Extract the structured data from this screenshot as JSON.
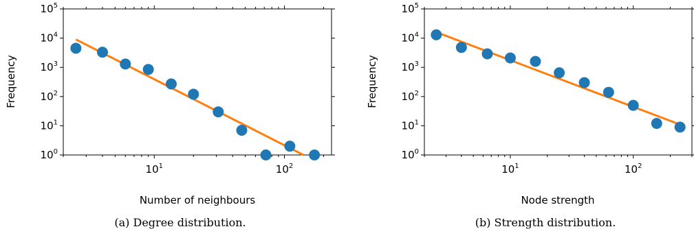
{
  "chart_data": [
    {
      "type": "scatter",
      "xscale": "log",
      "yscale": "log",
      "xlim": [
        2.0,
        230
      ],
      "ylim": [
        1,
        100000
      ],
      "xticks": [
        {
          "value": 10,
          "base": "10",
          "exp": "1"
        },
        {
          "value": 100,
          "base": "10",
          "exp": "2"
        }
      ],
      "yticks": [
        {
          "value": 1,
          "base": "10",
          "exp": "0"
        },
        {
          "value": 10,
          "base": "10",
          "exp": "1"
        },
        {
          "value": 100,
          "base": "10",
          "exp": "2"
        },
        {
          "value": 1000,
          "base": "10",
          "exp": "3"
        },
        {
          "value": 10000,
          "base": "10",
          "exp": "4"
        },
        {
          "value": 100000,
          "base": "10",
          "exp": "5"
        }
      ],
      "xlabel": "Number of neighbours",
      "ylabel": "Frequency",
      "caption": "(a) Degree distribution.",
      "points": [
        {
          "x": 2.5,
          "y": 4500
        },
        {
          "x": 4,
          "y": 3300
        },
        {
          "x": 6,
          "y": 1300
        },
        {
          "x": 9,
          "y": 850
        },
        {
          "x": 13.5,
          "y": 270
        },
        {
          "x": 20,
          "y": 120
        },
        {
          "x": 31,
          "y": 30
        },
        {
          "x": 47,
          "y": 7
        },
        {
          "x": 72,
          "y": 1
        },
        {
          "x": 110,
          "y": 2
        },
        {
          "x": 170,
          "y": 1
        }
      ],
      "fit": [
        {
          "x": 2.5,
          "y": 9000
        },
        {
          "x": 140,
          "y": 1
        }
      ],
      "colors": {
        "points": "#1f77b4",
        "fit": "#ff7f0e"
      }
    },
    {
      "type": "scatter",
      "xscale": "log",
      "yscale": "log",
      "xlim": [
        2.0,
        300
      ],
      "ylim": [
        1,
        100000
      ],
      "xticks": [
        {
          "value": 10,
          "base": "10",
          "exp": "1"
        },
        {
          "value": 100,
          "base": "10",
          "exp": "2"
        }
      ],
      "yticks": [
        {
          "value": 1,
          "base": "10",
          "exp": "0"
        },
        {
          "value": 10,
          "base": "10",
          "exp": "1"
        },
        {
          "value": 100,
          "base": "10",
          "exp": "2"
        },
        {
          "value": 1000,
          "base": "10",
          "exp": "3"
        },
        {
          "value": 10000,
          "base": "10",
          "exp": "4"
        },
        {
          "value": 100000,
          "base": "10",
          "exp": "5"
        }
      ],
      "xlabel": "Node strength",
      "ylabel": "Frequency",
      "caption": "(b) Strength distribution.",
      "points": [
        {
          "x": 2.5,
          "y": 13000
        },
        {
          "x": 4,
          "y": 4800
        },
        {
          "x": 6.5,
          "y": 2900
        },
        {
          "x": 10,
          "y": 2100
        },
        {
          "x": 16,
          "y": 1600
        },
        {
          "x": 25,
          "y": 650
        },
        {
          "x": 40,
          "y": 300
        },
        {
          "x": 63,
          "y": 140
        },
        {
          "x": 100,
          "y": 50
        },
        {
          "x": 155,
          "y": 12
        },
        {
          "x": 240,
          "y": 9
        }
      ],
      "fit": [
        {
          "x": 2.5,
          "y": 16000
        },
        {
          "x": 240,
          "y": 11
        }
      ],
      "colors": {
        "points": "#1f77b4",
        "fit": "#ff7f0e"
      }
    }
  ]
}
